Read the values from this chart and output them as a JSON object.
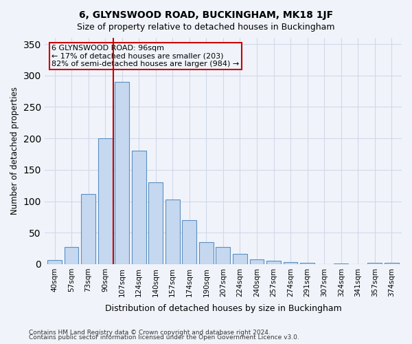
{
  "title": "6, GLYNSWOOD ROAD, BUCKINGHAM, MK18 1JF",
  "subtitle": "Size of property relative to detached houses in Buckingham",
  "xlabel": "Distribution of detached houses by size in Buckingham",
  "ylabel": "Number of detached properties",
  "categories": [
    "40sqm",
    "57sqm",
    "73sqm",
    "90sqm",
    "107sqm",
    "124sqm",
    "140sqm",
    "157sqm",
    "174sqm",
    "190sqm",
    "207sqm",
    "224sqm",
    "240sqm",
    "257sqm",
    "274sqm",
    "291sqm",
    "307sqm",
    "324sqm",
    "341sqm",
    "357sqm",
    "374sqm"
  ],
  "values": [
    7,
    27,
    111,
    200,
    290,
    180,
    130,
    103,
    70,
    35,
    27,
    16,
    8,
    5,
    3,
    2,
    0,
    1,
    0,
    2,
    2
  ],
  "bar_color": "#c5d8f0",
  "bar_edge_color": "#5a8fc2",
  "grid_color": "#d0d8e8",
  "background_color": "#f0f4fa",
  "vline_x": 3.5,
  "vline_color": "#cc0000",
  "annotation_title": "6 GLYNSWOOD ROAD: 96sqm",
  "annotation_line1": "← 17% of detached houses are smaller (203)",
  "annotation_line2": "82% of semi-detached houses are larger (984) →",
  "annotation_box_edge": "#cc0000",
  "ylim": [
    0,
    360
  ],
  "yticks": [
    0,
    50,
    100,
    150,
    200,
    250,
    300,
    350
  ],
  "footer_line1": "Contains HM Land Registry data © Crown copyright and database right 2024.",
  "footer_line2": "Contains public sector information licensed under the Open Government Licence v3.0."
}
